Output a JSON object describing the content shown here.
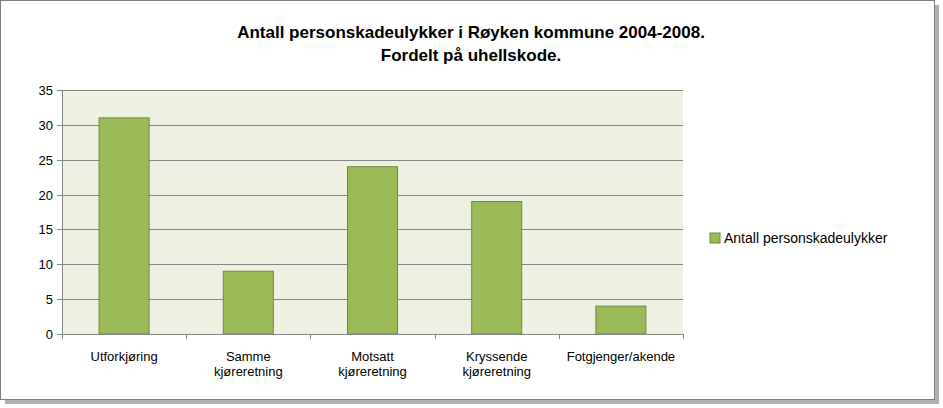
{
  "chart_data": {
    "type": "bar",
    "title": "Antall personskadeulykker i Røyken kommune 2004-2008.",
    "subtitle": "Fordelt på uhellskode.",
    "categories": [
      "Utforkjøring",
      "Samme kjøreretning",
      "Motsatt kjøreretning",
      "Kryssende kjøreretning",
      "Fotgjenger/akende"
    ],
    "series": [
      {
        "name": "Antall personskadeulykker",
        "color": "#9bbb59",
        "values": [
          31,
          9,
          24,
          19,
          4
        ]
      }
    ],
    "ylim": [
      0,
      35
    ],
    "yticks": [
      0,
      5,
      10,
      15,
      20,
      25,
      30,
      35
    ],
    "grid": true,
    "legend": "right"
  }
}
